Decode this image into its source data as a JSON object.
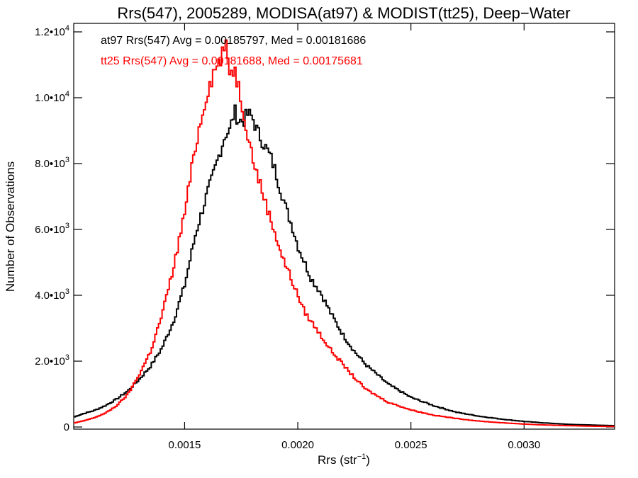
{
  "chart_data": {
    "type": "line",
    "style": "step-histogram",
    "title": "Rrs(547), 2005289, MODISA(at97) & MODIST(tt25), Deep−Water",
    "xlabel_base": "Rrs (str",
    "xlabel_sup": "−1",
    "xlabel_end": ")",
    "ylabel": "Number of Observations",
    "xlim": [
      0.00101,
      0.0034
    ],
    "ylim": [
      0,
      12000
    ],
    "x_ticks": [
      {
        "value": 0.0015,
        "label": "0.0015"
      },
      {
        "value": 0.002,
        "label": "0.0020"
      },
      {
        "value": 0.0025,
        "label": "0.0025"
      },
      {
        "value": 0.003,
        "label": "0.0030"
      }
    ],
    "y_ticks": [
      {
        "value": 0,
        "mant": "0",
        "exp": ""
      },
      {
        "value": 2000,
        "mant": "2.0•10",
        "exp": "3"
      },
      {
        "value": 4000,
        "mant": "4.0•10",
        "exp": "3"
      },
      {
        "value": 6000,
        "mant": "6.0•10",
        "exp": "3"
      },
      {
        "value": 8000,
        "mant": "8.0•10",
        "exp": "3"
      },
      {
        "value": 10000,
        "mant": "1.0•10",
        "exp": "4"
      },
      {
        "value": 12000,
        "mant": "1.2•10",
        "exp": "4"
      }
    ],
    "grid": false,
    "legend_position": "top-left",
    "series": [
      {
        "label": "at97 Rrs(547) Avg = 0.00185797, Med = 0.00181686",
        "color": "#000000",
        "x": [
          0.00101,
          0.00105,
          0.0011,
          0.00115,
          0.0012,
          0.00125,
          0.0013,
          0.00135,
          0.0014,
          0.00145,
          0.0015,
          0.00155,
          0.0016,
          0.00162,
          0.00165,
          0.00168,
          0.0017,
          0.00172,
          0.00174,
          0.00176,
          0.00178,
          0.0018,
          0.00182,
          0.00185,
          0.00188,
          0.0019,
          0.00192,
          0.00195,
          0.00198,
          0.002,
          0.00203,
          0.00206,
          0.0021,
          0.00215,
          0.0022,
          0.00225,
          0.0023,
          0.0024,
          0.0025,
          0.0026,
          0.0027,
          0.0028,
          0.0029,
          0.003,
          0.0031,
          0.0032,
          0.0033,
          0.0034
        ],
        "y": [
          300,
          400,
          500,
          650,
          850,
          1100,
          1450,
          1850,
          2400,
          3200,
          4300,
          5900,
          7100,
          7500,
          8200,
          8900,
          9000,
          9600,
          9300,
          9300,
          9500,
          9400,
          9000,
          8600,
          8200,
          7800,
          7300,
          6600,
          6000,
          5500,
          5000,
          4500,
          4100,
          3400,
          2800,
          2300,
          1900,
          1300,
          900,
          650,
          450,
          330,
          240,
          170,
          120,
          80,
          60,
          40
        ]
      },
      {
        "label": "tt25 Rrs(547) Avg = 0.00181688, Med = 0.00175681",
        "color": "#ff0000",
        "x": [
          0.00101,
          0.00105,
          0.0011,
          0.00115,
          0.0012,
          0.00125,
          0.0013,
          0.00135,
          0.0014,
          0.00145,
          0.0015,
          0.00155,
          0.0016,
          0.00163,
          0.00166,
          0.00168,
          0.0017,
          0.00172,
          0.00174,
          0.00176,
          0.00178,
          0.0018,
          0.00182,
          0.00185,
          0.00188,
          0.0019,
          0.00193,
          0.00196,
          0.002,
          0.00203,
          0.00206,
          0.0021,
          0.00215,
          0.0022,
          0.00225,
          0.0023,
          0.0024,
          0.0025,
          0.0026,
          0.0027,
          0.0028,
          0.0029,
          0.003,
          0.0031,
          0.0032,
          0.0033,
          0.0034
        ],
        "y": [
          120,
          180,
          280,
          420,
          650,
          1000,
          1600,
          2300,
          3400,
          4800,
          6500,
          8600,
          10200,
          10800,
          11200,
          11600,
          10800,
          10900,
          10300,
          9600,
          8900,
          8200,
          7700,
          7000,
          6300,
          5900,
          5200,
          4700,
          4000,
          3500,
          3200,
          2800,
          2300,
          1900,
          1500,
          1150,
          750,
          520,
          360,
          260,
          180,
          130,
          90,
          60,
          40,
          25,
          15
        ]
      }
    ]
  }
}
